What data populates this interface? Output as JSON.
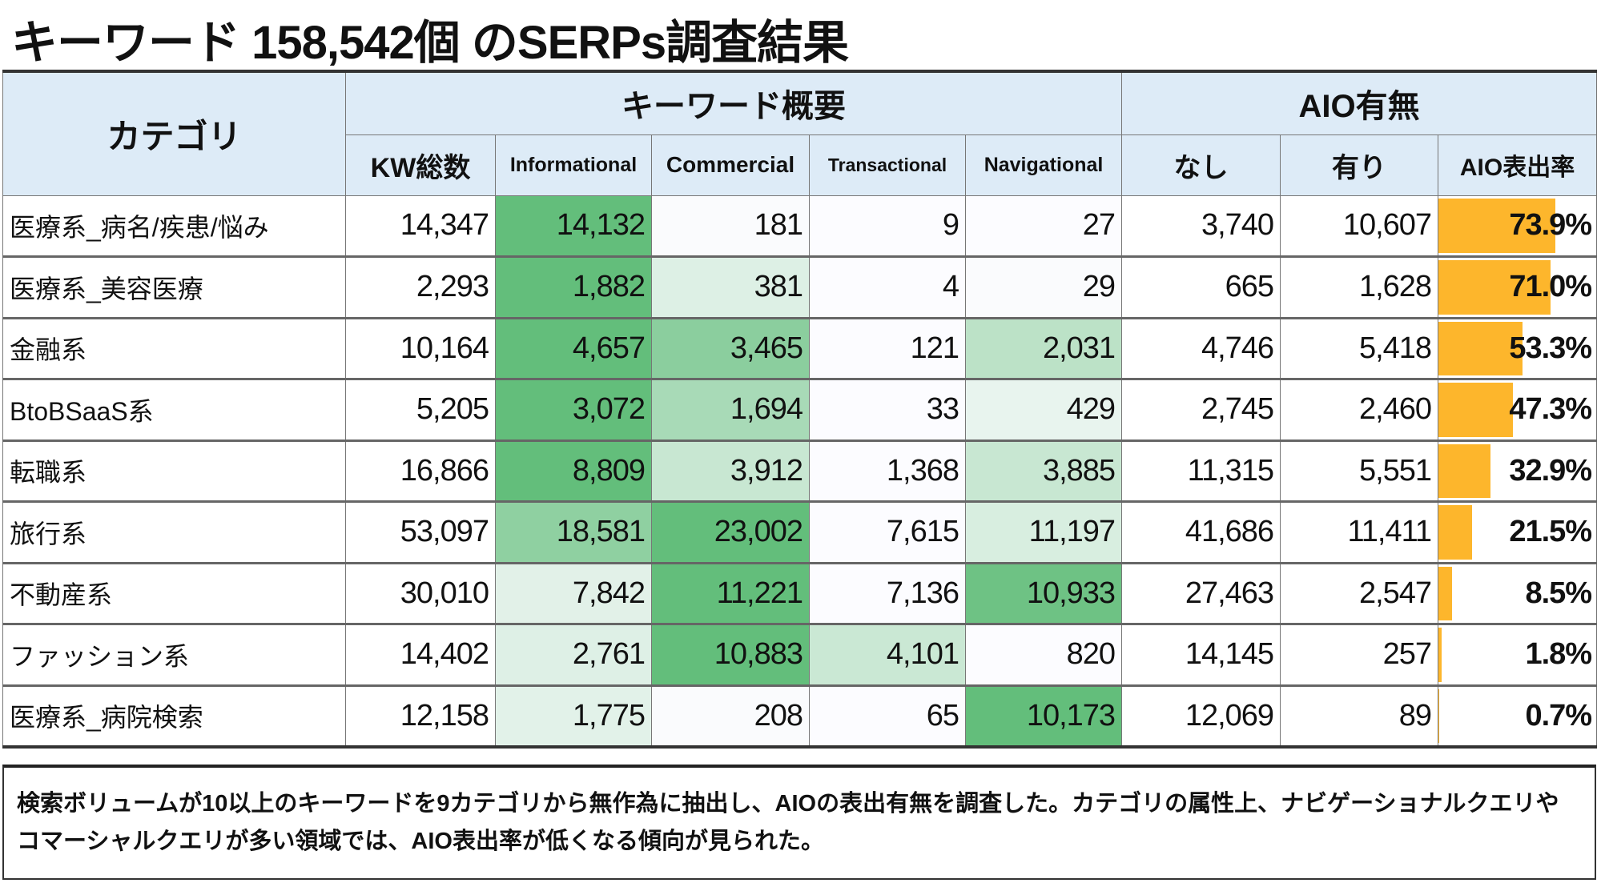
{
  "title": "キーワード 158,542個 のSERPs調査結果",
  "colors": {
    "header_bg": "#ddebf7",
    "heat_max": "#63be7b",
    "heat_min": "#ffffff",
    "bar": "#fdb62c"
  },
  "table": {
    "header_category": "カテゴリ",
    "group_keywords": "キーワード概要",
    "group_aio": "AIO有無",
    "columns": [
      "KW総数",
      "Informational",
      "Commercial",
      "Transactional",
      "Navigational",
      "なし",
      "有り",
      "AIO表出率"
    ],
    "rows": [
      {
        "category": "医療系_病名/疾患/悩み",
        "total": "14,347",
        "info": "14,132",
        "comm": "181",
        "trans": "9",
        "nav": "27",
        "none": "3,740",
        "yes": "10,607",
        "rate": "73.9%",
        "rate_value": 73.9
      },
      {
        "category": "医療系_美容医療",
        "total": "2,293",
        "info": "1,882",
        "comm": "381",
        "trans": "4",
        "nav": "29",
        "none": "665",
        "yes": "1,628",
        "rate": "71.0%",
        "rate_value": 71.0
      },
      {
        "category": "金融系",
        "total": "10,164",
        "info": "4,657",
        "comm": "3,465",
        "trans": "121",
        "nav": "2,031",
        "none": "4,746",
        "yes": "5,418",
        "rate": "53.3%",
        "rate_value": 53.3
      },
      {
        "category": "BtoBSaaS系",
        "total": "5,205",
        "info": "3,072",
        "comm": "1,694",
        "trans": "33",
        "nav": "429",
        "none": "2,745",
        "yes": "2,460",
        "rate": "47.3%",
        "rate_value": 47.3
      },
      {
        "category": "転職系",
        "total": "16,866",
        "info": "8,809",
        "comm": "3,912",
        "trans": "1,368",
        "nav": "3,885",
        "none": "11,315",
        "yes": "5,551",
        "rate": "32.9%",
        "rate_value": 32.9
      },
      {
        "category": "旅行系",
        "total": "53,097",
        "info": "18,581",
        "comm": "23,002",
        "trans": "7,615",
        "nav": "11,197",
        "none": "41,686",
        "yes": "11,411",
        "rate": "21.5%",
        "rate_value": 21.5
      },
      {
        "category": "不動産系",
        "total": "30,010",
        "info": "7,842",
        "comm": "11,221",
        "trans": "7,136",
        "nav": "10,933",
        "none": "27,463",
        "yes": "2,547",
        "rate": "8.5%",
        "rate_value": 8.5
      },
      {
        "category": "ファッション系",
        "total": "14,402",
        "info": "2,761",
        "comm": "10,883",
        "trans": "4,101",
        "nav": "820",
        "none": "14,145",
        "yes": "257",
        "rate": "1.8%",
        "rate_value": 1.8
      },
      {
        "category": "医療系_病院検索",
        "total": "12,158",
        "info": "1,775",
        "comm": "208",
        "trans": "65",
        "nav": "10,173",
        "none": "12,069",
        "yes": "89",
        "rate": "0.7%",
        "rate_value": 0.7
      }
    ]
  },
  "note": "検索ボリュームが10以上のキーワードを9カテゴリから無作為に抽出し、AIOの表出有無を調査した。カテゴリの属性上、ナビゲーショナルクエリやコマーシャルクエリが多い領域では、AIO表出率が低くなる傾向が見られた。"
}
